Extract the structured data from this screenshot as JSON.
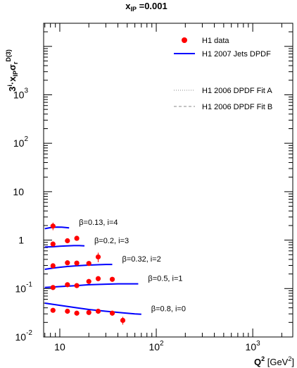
{
  "title": {
    "main": "x",
    "sub": "IP",
    "value": " =0.001"
  },
  "axes": {
    "xlabel": {
      "base": "Q",
      "sup": "2",
      "unit_open": " [GeV",
      "unit_sup": "2",
      "unit_close": "]"
    },
    "ylabel": {
      "pre": "3",
      "pre_sup": "i",
      "dot": "·x",
      "sub1": "IP",
      "sigma": "σ",
      "sub2": "r",
      "sup2": "D(3)"
    }
  },
  "legend": {
    "entries": [
      {
        "label": "H1 data",
        "style": "marker",
        "color": "#ff0000"
      },
      {
        "label": "H1 2007 Jets DPDF",
        "style": "solid",
        "color": "#0000ff"
      },
      {
        "label": "H1 2006 DPDF Fit A",
        "style": "dotted",
        "color": "#888888"
      },
      {
        "label": "H1 2006 DPDF Fit B",
        "style": "dashed",
        "color": "#888888"
      }
    ]
  },
  "chart_data": {
    "type": "scatter",
    "title": "xIP =0.001",
    "xlabel": "Q2 [GeV2]",
    "ylabel": "3i·xIPσr D(3)",
    "xscale": "log",
    "yscale": "log",
    "xlim": [
      6.8,
      2600
    ],
    "ylim": [
      0.01,
      30000
    ],
    "x_ticks": [
      {
        "value": 10,
        "base": "10",
        "exp": ""
      },
      {
        "value": 100,
        "base": "10",
        "exp": "2"
      },
      {
        "value": 1000,
        "base": "10",
        "exp": "3"
      }
    ],
    "y_ticks": [
      {
        "value": 0.01,
        "base": "10",
        "exp": "-2"
      },
      {
        "value": 0.1,
        "base": "10",
        "exp": "-1"
      },
      {
        "value": 1,
        "base": "1",
        "exp": ""
      },
      {
        "value": 10,
        "base": "10",
        "exp": ""
      },
      {
        "value": 100,
        "base": "10",
        "exp": "2"
      },
      {
        "value": 1000,
        "base": "10",
        "exp": "3"
      }
    ],
    "grid": false,
    "legend_position": "top-right",
    "series": [
      {
        "label": "β=0.13, i=4",
        "points": [
          {
            "x": 8.5,
            "y": 1.95,
            "err": 0.35
          }
        ],
        "curve": [
          [
            7.0,
            1.72
          ],
          [
            7.8,
            1.8
          ],
          [
            8.6,
            1.84
          ],
          [
            9.5,
            1.86
          ],
          [
            10.5,
            1.85
          ],
          [
            11.5,
            1.82
          ],
          [
            12.5,
            1.79
          ]
        ]
      },
      {
        "label": "β=0.2, i=3",
        "points": [
          {
            "x": 8.5,
            "y": 0.83,
            "err": 0.08
          },
          {
            "x": 12,
            "y": 0.97,
            "err": 0.09
          },
          {
            "x": 15,
            "y": 1.09,
            "err": 0.1
          }
        ],
        "curve": [
          [
            7.0,
            0.72
          ],
          [
            8.5,
            0.73
          ],
          [
            10,
            0.75
          ],
          [
            12,
            0.76
          ],
          [
            14,
            0.77
          ],
          [
            16,
            0.77
          ],
          [
            18,
            0.76
          ]
        ]
      },
      {
        "label": "β=0.32, i=2",
        "points": [
          {
            "x": 8.5,
            "y": 0.295,
            "err": 0.025
          },
          {
            "x": 12,
            "y": 0.34,
            "err": 0.03
          },
          {
            "x": 15,
            "y": 0.335,
            "err": 0.03
          },
          {
            "x": 20,
            "y": 0.33,
            "err": 0.03
          },
          {
            "x": 25,
            "y": 0.45,
            "err": 0.1
          }
        ],
        "curve": [
          [
            7.0,
            0.25
          ],
          [
            8.5,
            0.265
          ],
          [
            10,
            0.275
          ],
          [
            12,
            0.285
          ],
          [
            15,
            0.295
          ],
          [
            20,
            0.305
          ],
          [
            25,
            0.31
          ],
          [
            30,
            0.315
          ],
          [
            35,
            0.315
          ]
        ]
      },
      {
        "label": "β=0.5, i=1",
        "points": [
          {
            "x": 8.5,
            "y": 0.105,
            "err": 0.012
          },
          {
            "x": 12,
            "y": 0.12,
            "err": 0.01
          },
          {
            "x": 15,
            "y": 0.115,
            "err": 0.01
          },
          {
            "x": 20,
            "y": 0.14,
            "err": 0.012
          },
          {
            "x": 25,
            "y": 0.16,
            "err": 0.015
          },
          {
            "x": 35,
            "y": 0.155,
            "err": 0.015
          }
        ],
        "curve": [
          [
            7.0,
            0.105
          ],
          [
            10,
            0.11
          ],
          [
            15,
            0.115
          ],
          [
            20,
            0.12
          ],
          [
            30,
            0.123
          ],
          [
            40,
            0.125
          ],
          [
            55,
            0.125
          ],
          [
            65,
            0.125
          ]
        ]
      },
      {
        "label": "β=0.8, i=0",
        "points": [
          {
            "x": 8.5,
            "y": 0.0355,
            "err": 0.003
          },
          {
            "x": 12,
            "y": 0.034,
            "err": 0.003
          },
          {
            "x": 15,
            "y": 0.031,
            "err": 0.003
          },
          {
            "x": 20,
            "y": 0.032,
            "err": 0.003
          },
          {
            "x": 25,
            "y": 0.034,
            "err": 0.003
          },
          {
            "x": 35,
            "y": 0.031,
            "err": 0.003
          },
          {
            "x": 45,
            "y": 0.022,
            "err": 0.004
          }
        ],
        "curve": [
          [
            7.0,
            0.05
          ],
          [
            10,
            0.045
          ],
          [
            15,
            0.04
          ],
          [
            20,
            0.037
          ],
          [
            30,
            0.034
          ],
          [
            45,
            0.0315
          ],
          [
            60,
            0.03
          ],
          [
            70,
            0.0295
          ]
        ]
      }
    ]
  }
}
